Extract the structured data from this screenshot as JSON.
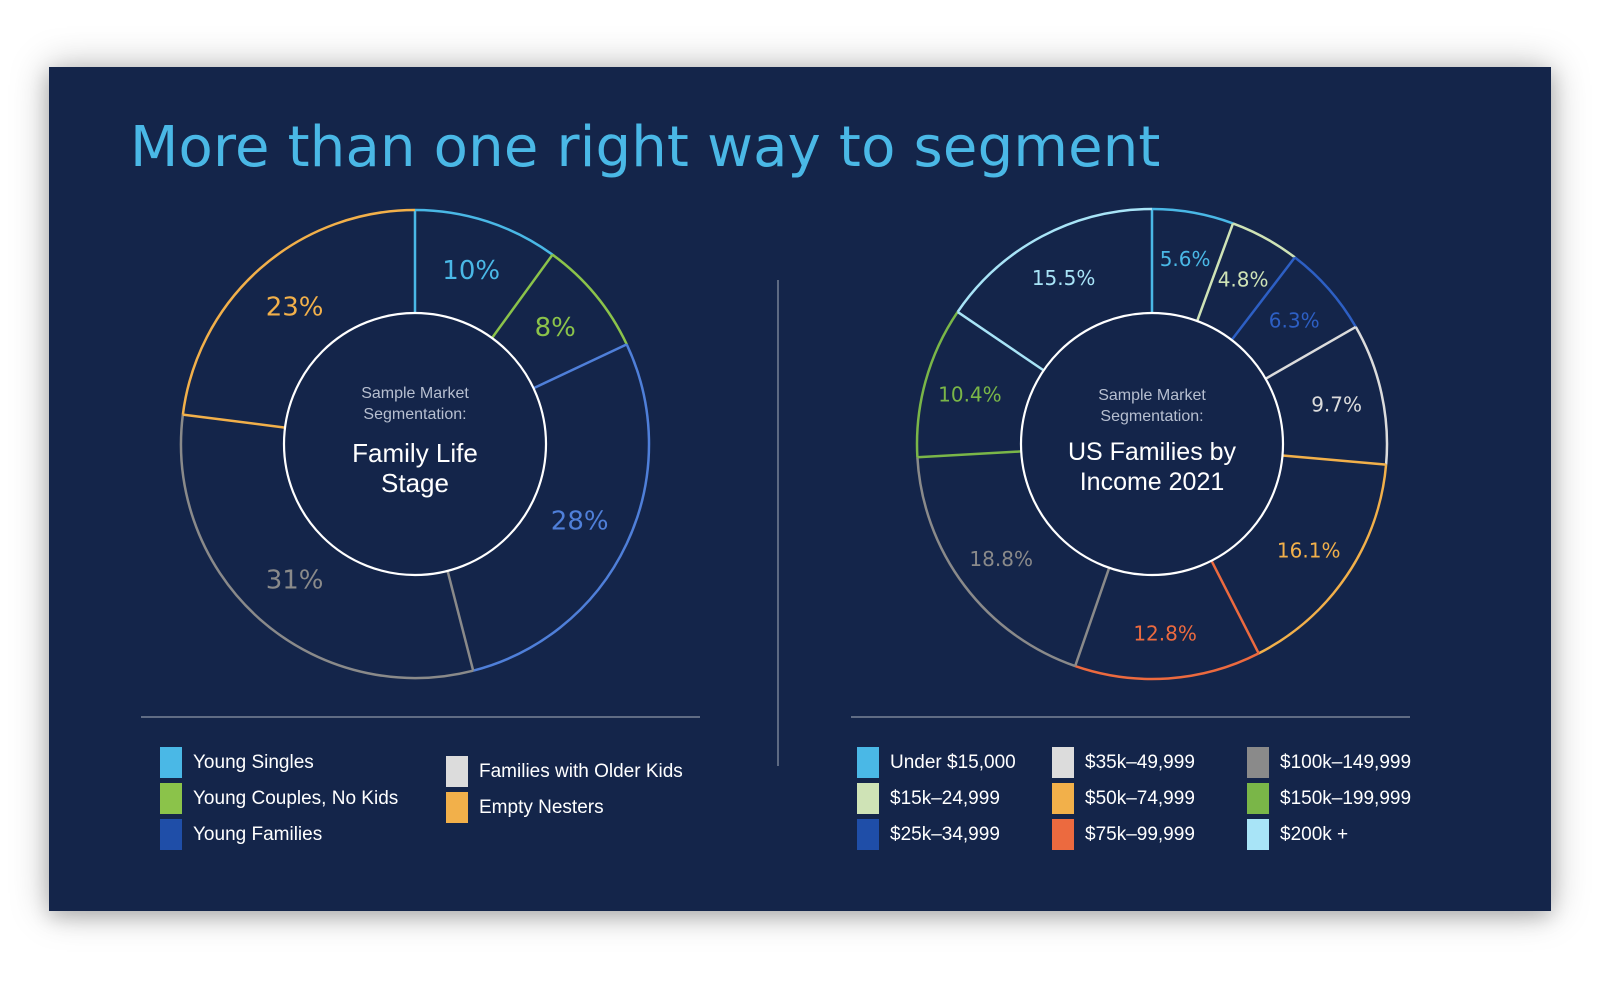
{
  "title": "More than one right way to segment",
  "colors": {
    "background": "#14254a",
    "title": "#4ab8e6",
    "divider": "#8e97a8",
    "hole": "#ffffff"
  },
  "chart_data": [
    {
      "type": "pie",
      "center_line1": "Sample Market",
      "center_line2": "Segmentation:",
      "center_title": [
        "Family Life",
        "Stage"
      ],
      "slices": [
        {
          "name": "Young Singles",
          "value": 10,
          "label": "10%",
          "color": "#4ab8e6"
        },
        {
          "name": "Young Couples, No Kids",
          "value": 8,
          "label": "8%",
          "color": "#8bc34a"
        },
        {
          "name": "Young Families",
          "value": 28,
          "label": "28%",
          "color": "#4f7fd9"
        },
        {
          "name": "Families with Older Kids",
          "value": 31,
          "label": "31%",
          "color": "#8a8a8a"
        },
        {
          "name": "Empty Nesters",
          "value": 23,
          "label": "23%",
          "color": "#f2b04a"
        }
      ],
      "legend": [
        {
          "label": "Young Singles",
          "color": "#4ab8e6"
        },
        {
          "label": "Young Couples, No Kids",
          "color": "#8bc34a"
        },
        {
          "label": "Young Families",
          "color": "#1f4ea8"
        },
        {
          "label": "Families with Older Kids",
          "color": "#dcdcdc"
        },
        {
          "label": "Empty Nesters",
          "color": "#f2b04a"
        }
      ]
    },
    {
      "type": "pie",
      "center_line1": "Sample Market",
      "center_line2": "Segmentation:",
      "center_title": [
        "US Families by",
        "Income 2021"
      ],
      "slices": [
        {
          "name": "Under $15,000",
          "value": 5.6,
          "label": "5.6%",
          "color": "#4ab8e6"
        },
        {
          "name": "$15k-24,999",
          "value": 4.8,
          "label": "4.8%",
          "color": "#cfe3b6"
        },
        {
          "name": "$25k-34,999",
          "value": 6.3,
          "label": "6.3%",
          "color": "#2d5fc4"
        },
        {
          "name": "$35k-49,999",
          "value": 9.7,
          "label": "9.7%",
          "color": "#dcdcdc"
        },
        {
          "name": "$50k-74,999",
          "value": 16.1,
          "label": "16.1%",
          "color": "#f2b04a"
        },
        {
          "name": "$75k-99,999",
          "value": 12.8,
          "label": "12.8%",
          "color": "#ec6a3f"
        },
        {
          "name": "$100k-149,999",
          "value": 18.8,
          "label": "18.8%",
          "color": "#8a8a8a"
        },
        {
          "name": "$150k-199,999",
          "value": 10.4,
          "label": "10.4%",
          "color": "#7ab648"
        },
        {
          "name": "$200k +",
          "value": 15.5,
          "label": "15.5%",
          "color": "#a8e4f7"
        }
      ],
      "legend": [
        {
          "label": "Under $15,000",
          "color": "#4ab8e6"
        },
        {
          "label": "$15k–24,999",
          "color": "#cfe3b6"
        },
        {
          "label": "$25k–34,999",
          "color": "#1f4ea8"
        },
        {
          "label": "$35k–49,999",
          "color": "#dcdcdc"
        },
        {
          "label": "$50k–74,999",
          "color": "#f2b04a"
        },
        {
          "label": "$75k–99,999",
          "color": "#ec6a3f"
        },
        {
          "label": "$100k–149,999",
          "color": "#8a8a8a"
        },
        {
          "label": "$150k–199,999",
          "color": "#7ab648"
        },
        {
          "label": "$200k +",
          "color": "#a8e4f7"
        }
      ]
    }
  ]
}
